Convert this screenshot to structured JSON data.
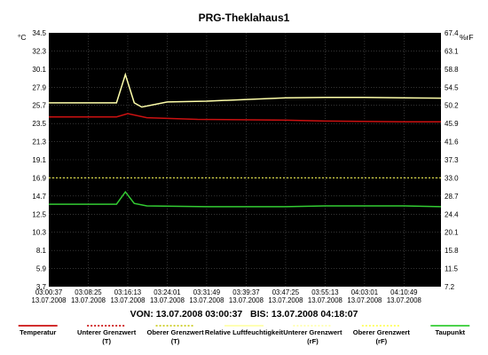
{
  "chart_data": {
    "type": "line",
    "title": "PRG-Theklahaus1",
    "left_axis_unit": "°C",
    "right_axis_unit": "%rF",
    "left_ticks": [
      "34.5",
      "32.3",
      "30.1",
      "27.9",
      "25.7",
      "23.5",
      "21.3",
      "19.1",
      "16.9",
      "14.7",
      "12.5",
      "10.3",
      "8.1",
      "5.9",
      "3.7"
    ],
    "right_ticks": [
      "67.4",
      "63.1",
      "58.8",
      "54.5",
      "50.2",
      "45.9",
      "41.6",
      "37.3",
      "33.0",
      "28.7",
      "24.4",
      "20.1",
      "15.8",
      "11.5",
      "7.2"
    ],
    "left_ylim": [
      3.7,
      34.5
    ],
    "right_ylim": [
      7.2,
      67.4
    ],
    "x_ticks": [
      {
        "time": "03:00:37",
        "date": "13.07.2008"
      },
      {
        "time": "03:08:25",
        "date": "13.07.2008"
      },
      {
        "time": "03:16:13",
        "date": "13.07.2008"
      },
      {
        "time": "03:24:01",
        "date": "13.07.2008"
      },
      {
        "time": "03:31:49",
        "date": "13.07.2008"
      },
      {
        "time": "03:39:37",
        "date": "13.07.2008"
      },
      {
        "time": "03:47:25",
        "date": "13.07.2008"
      },
      {
        "time": "03:55:13",
        "date": "13.07.2008"
      },
      {
        "time": "04:03:01",
        "date": "13.07.2008"
      },
      {
        "time": "04:10:49",
        "date": "13.07.2008"
      }
    ],
    "x_range": [
      "03:00:37",
      "04:18:07"
    ],
    "range_text": "VON: 13.07.2008 03:00:37   BIS: 13.07.2008 04:18:07",
    "grid": true,
    "background": "#000000",
    "series": [
      {
        "name": "Temperatur",
        "axis": "left",
        "color": "#cc1111",
        "style": "solid",
        "points": [
          [
            "03:00:37",
            24.3
          ],
          [
            "03:14:00",
            24.3
          ],
          [
            "03:16:13",
            24.7
          ],
          [
            "03:20:00",
            24.2
          ],
          [
            "03:30:00",
            24.0
          ],
          [
            "03:47:25",
            23.9
          ],
          [
            "03:55:13",
            23.8
          ],
          [
            "04:10:49",
            23.7
          ],
          [
            "04:18:07",
            23.7
          ]
        ]
      },
      {
        "name": "Unterer Grenzwert (T)",
        "axis": "left",
        "color": "#cc1111",
        "style": "dashed",
        "points": []
      },
      {
        "name": "Oberer Grenzwert (T)",
        "axis": "left",
        "color": "#cccc22",
        "style": "dashed",
        "points": []
      },
      {
        "name": "Relative Luftfeuchtigkeit",
        "axis": "right",
        "color": "#ffffaa",
        "style": "solid",
        "points": [
          [
            "03:00:37",
            50.8
          ],
          [
            "03:14:00",
            50.8
          ],
          [
            "03:15:45",
            57.5
          ],
          [
            "03:17:30",
            50.8
          ],
          [
            "03:19:00",
            49.8
          ],
          [
            "03:24:01",
            51.0
          ],
          [
            "03:31:49",
            51.2
          ],
          [
            "03:39:37",
            51.6
          ],
          [
            "03:47:25",
            52.0
          ],
          [
            "03:55:13",
            52.1
          ],
          [
            "04:03:01",
            52.1
          ],
          [
            "04:10:49",
            52.0
          ],
          [
            "04:18:07",
            51.9
          ]
        ]
      },
      {
        "name": "Unterer Grenzwert (rF)",
        "axis": "right",
        "color": "#ffffaa",
        "style": "dashed",
        "points": []
      },
      {
        "name": "Oberer Grenzwert (rF)",
        "axis": "right",
        "color": "#ffff55",
        "style": "dashed",
        "points": [
          [
            "03:00:37",
            33.0
          ],
          [
            "04:18:07",
            33.0
          ]
        ]
      },
      {
        "name": "Taupunkt",
        "axis": "left",
        "color": "#33cc33",
        "style": "solid",
        "points": [
          [
            "03:00:37",
            13.7
          ],
          [
            "03:14:00",
            13.7
          ],
          [
            "03:15:45",
            15.2
          ],
          [
            "03:17:30",
            13.8
          ],
          [
            "03:20:00",
            13.5
          ],
          [
            "03:31:49",
            13.4
          ],
          [
            "03:47:25",
            13.4
          ],
          [
            "03:55:13",
            13.5
          ],
          [
            "04:10:49",
            13.5
          ],
          [
            "04:18:07",
            13.4
          ]
        ]
      }
    ],
    "legend": [
      {
        "line1": "Temperatur",
        "line2": "",
        "color": "#cc1111",
        "style": "solid"
      },
      {
        "line1": "Unterer Grenzwert",
        "line2": "(T)",
        "color": "#cc1111",
        "style": "dashed"
      },
      {
        "line1": "Oberer Grenzwert",
        "line2": "(T)",
        "color": "#cccc22",
        "style": "dashed"
      },
      {
        "line1": "Relative Luftfeuchtigkeit",
        "line2": "",
        "color": "#ffffaa",
        "style": "solid"
      },
      {
        "line1": "Unterer Grenzwert",
        "line2": "(rF)",
        "color": "#ffffaa",
        "style": "dashed"
      },
      {
        "line1": "Oberer Grenzwert",
        "line2": "(rF)",
        "color": "#ffff55",
        "style": "dashed"
      },
      {
        "line1": "Taupunkt",
        "line2": "",
        "color": "#33cc33",
        "style": "solid"
      }
    ],
    "legend_placement": "bottom"
  }
}
